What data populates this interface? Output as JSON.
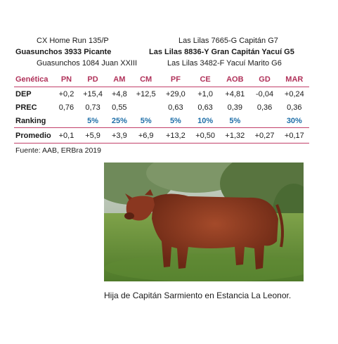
{
  "pedigree": {
    "left": {
      "top": "CX Home Run 135/P",
      "main": "Guasunchos 3933 Picante",
      "bottom": "Guasunchos 1084 Juan XXIII"
    },
    "right": {
      "top": "Las Lilas 7665-G Capitán G7",
      "main": "Las Lilas 8836-Y Gran Capitán Yacuí G5",
      "bottom": "Las Lilas 3482-F Yacuí Marito G6"
    }
  },
  "table": {
    "header_label": "Genética",
    "columns": [
      "PN",
      "PD",
      "AM",
      "CM",
      "PF",
      "CE",
      "AOB",
      "GD",
      "MAR"
    ],
    "rows": [
      {
        "label": "DEP",
        "values": [
          "+0,2",
          "+15,4",
          "+4,8",
          "+12,5",
          "+29,0",
          "+1,0",
          "+4,81",
          "-0,04",
          "+0,24"
        ]
      },
      {
        "label": "PREC",
        "values": [
          "0,76",
          "0,73",
          "0,55",
          "",
          "0,63",
          "0,63",
          "0,39",
          "0,36",
          "0,36"
        ]
      },
      {
        "label": "Ranking",
        "values": [
          "",
          "5%",
          "25%",
          "5%",
          "5%",
          "10%",
          "5%",
          "",
          "30%"
        ]
      },
      {
        "label": "Promedio",
        "values": [
          "+0,1",
          "+5,9",
          "+3,9",
          "+6,9",
          "+13,2",
          "+0,50",
          "+1,32",
          "+0,27",
          "+0,17"
        ]
      }
    ]
  },
  "source": "Fuente: AAB, ERBra 2019",
  "caption": "Hija de Capitán Sarmiento en Estancia La Leonor.",
  "colors": {
    "header": "#b0325a",
    "ranking": "#1f6fa8",
    "rule": "#c2416a"
  }
}
